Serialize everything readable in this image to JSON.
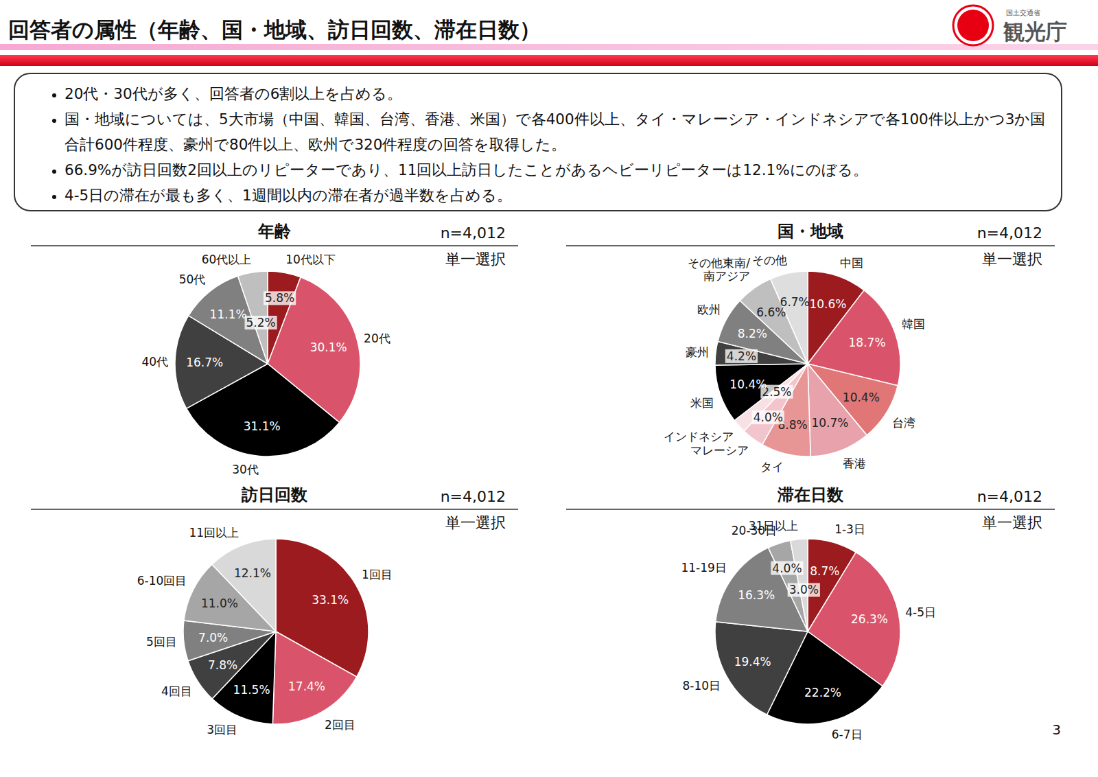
{
  "title": "回答者の属性（年齢、国・地域、訪日回数、滞在日数）",
  "logo": {
    "ministry": "国土交通省",
    "agency": "観光庁"
  },
  "bullets": [
    "20代・30代が多く、回答者の6割以上を占める。",
    "国・地域については、5大市場（中国、韓国、台湾、香港、米国）で各400件以上、タイ・マレーシア・インドネシアで各100件以上かつ3か国合計600件程度、豪州で80件以上、欧州で320件程度の回答を取得した。",
    "66.9%が訪日回数2回以上のリピーターであり、11回以上訪日したことがあるヘビーリピーターは12.1%にのぼる。",
    "4-5日の滞在が最も多く、1週間以内の滞在者が過半数を占める。"
  ],
  "page_number": "3",
  "chart_data": [
    {
      "type": "pie",
      "title": "年齢",
      "annotations": [
        "n=4,012",
        "単一選択"
      ],
      "categories": [
        "10代以下",
        "20代",
        "30代",
        "40代",
        "50代",
        "60代以上"
      ],
      "values": [
        5.8,
        30.1,
        31.1,
        16.7,
        11.1,
        5.2
      ],
      "value_labels": [
        "5.8%",
        "30.1%",
        "31.1%",
        "16.7%",
        "11.1%",
        "5.2%"
      ],
      "colors": [
        "#9b1b1e",
        "#d9546a",
        "#000000",
        "#404040",
        "#808080",
        "#bfbfbf"
      ],
      "data_labels": true
    },
    {
      "type": "pie",
      "title": "国・地域",
      "annotations": [
        "n=4,012",
        "単一選択"
      ],
      "categories": [
        "中国",
        "韓国",
        "台湾",
        "香港",
        "タイ",
        "マレーシア",
        "インドネシア",
        "米国",
        "豪州",
        "欧州",
        "その他東南/南アジア",
        "その他"
      ],
      "values": [
        10.6,
        18.7,
        10.4,
        10.7,
        8.8,
        4.0,
        2.5,
        10.4,
        4.2,
        8.2,
        6.6,
        6.7
      ],
      "value_labels": [
        "10.6%",
        "18.7%",
        "10.4%",
        "10.7%",
        "8.8%",
        "4.0%",
        "2.5%",
        "10.4%",
        "4.2%",
        "8.2%",
        "6.6%",
        "6.7%"
      ],
      "colors": [
        "#9b1b1e",
        "#d9546a",
        "#e07676",
        "#e8a2ab",
        "#e89596",
        "#f2c4cb",
        "#f8e1e5",
        "#000000",
        "#404040",
        "#808080",
        "#bfbfbf",
        "#dedede"
      ],
      "data_labels": true
    },
    {
      "type": "pie",
      "title": "訪日回数",
      "annotations": [
        "n=4,012",
        "単一選択"
      ],
      "categories": [
        "1回目",
        "2回目",
        "3回目",
        "4回目",
        "5回目",
        "6-10回目",
        "11回以上"
      ],
      "values": [
        33.1,
        17.4,
        11.5,
        7.8,
        7.0,
        11.0,
        12.1
      ],
      "value_labels": [
        "33.1%",
        "17.4%",
        "11.5%",
        "7.8%",
        "7.0%",
        "11.0%",
        "12.1%"
      ],
      "colors": [
        "#9b1b1e",
        "#d9546a",
        "#000000",
        "#404040",
        "#808080",
        "#a6a6a6",
        "#d9d9d9"
      ],
      "data_labels": true
    },
    {
      "type": "pie",
      "title": "滞在日数",
      "annotations": [
        "n=4,012",
        "単一選択"
      ],
      "categories": [
        "1-3日",
        "4-5日",
        "6-7日",
        "8-10日",
        "11-19日",
        "20-30日",
        "31日以上"
      ],
      "values": [
        8.7,
        26.3,
        22.2,
        19.4,
        16.3,
        4.0,
        3.0
      ],
      "value_labels": [
        "8.7%",
        "26.3%",
        "22.2%",
        "19.4%",
        "16.3%",
        "4.0%",
        "3.0%"
      ],
      "colors": [
        "#9b1b1e",
        "#d9546a",
        "#000000",
        "#404040",
        "#808080",
        "#a6a6a6",
        "#d9d9d9"
      ],
      "data_labels": true
    }
  ]
}
